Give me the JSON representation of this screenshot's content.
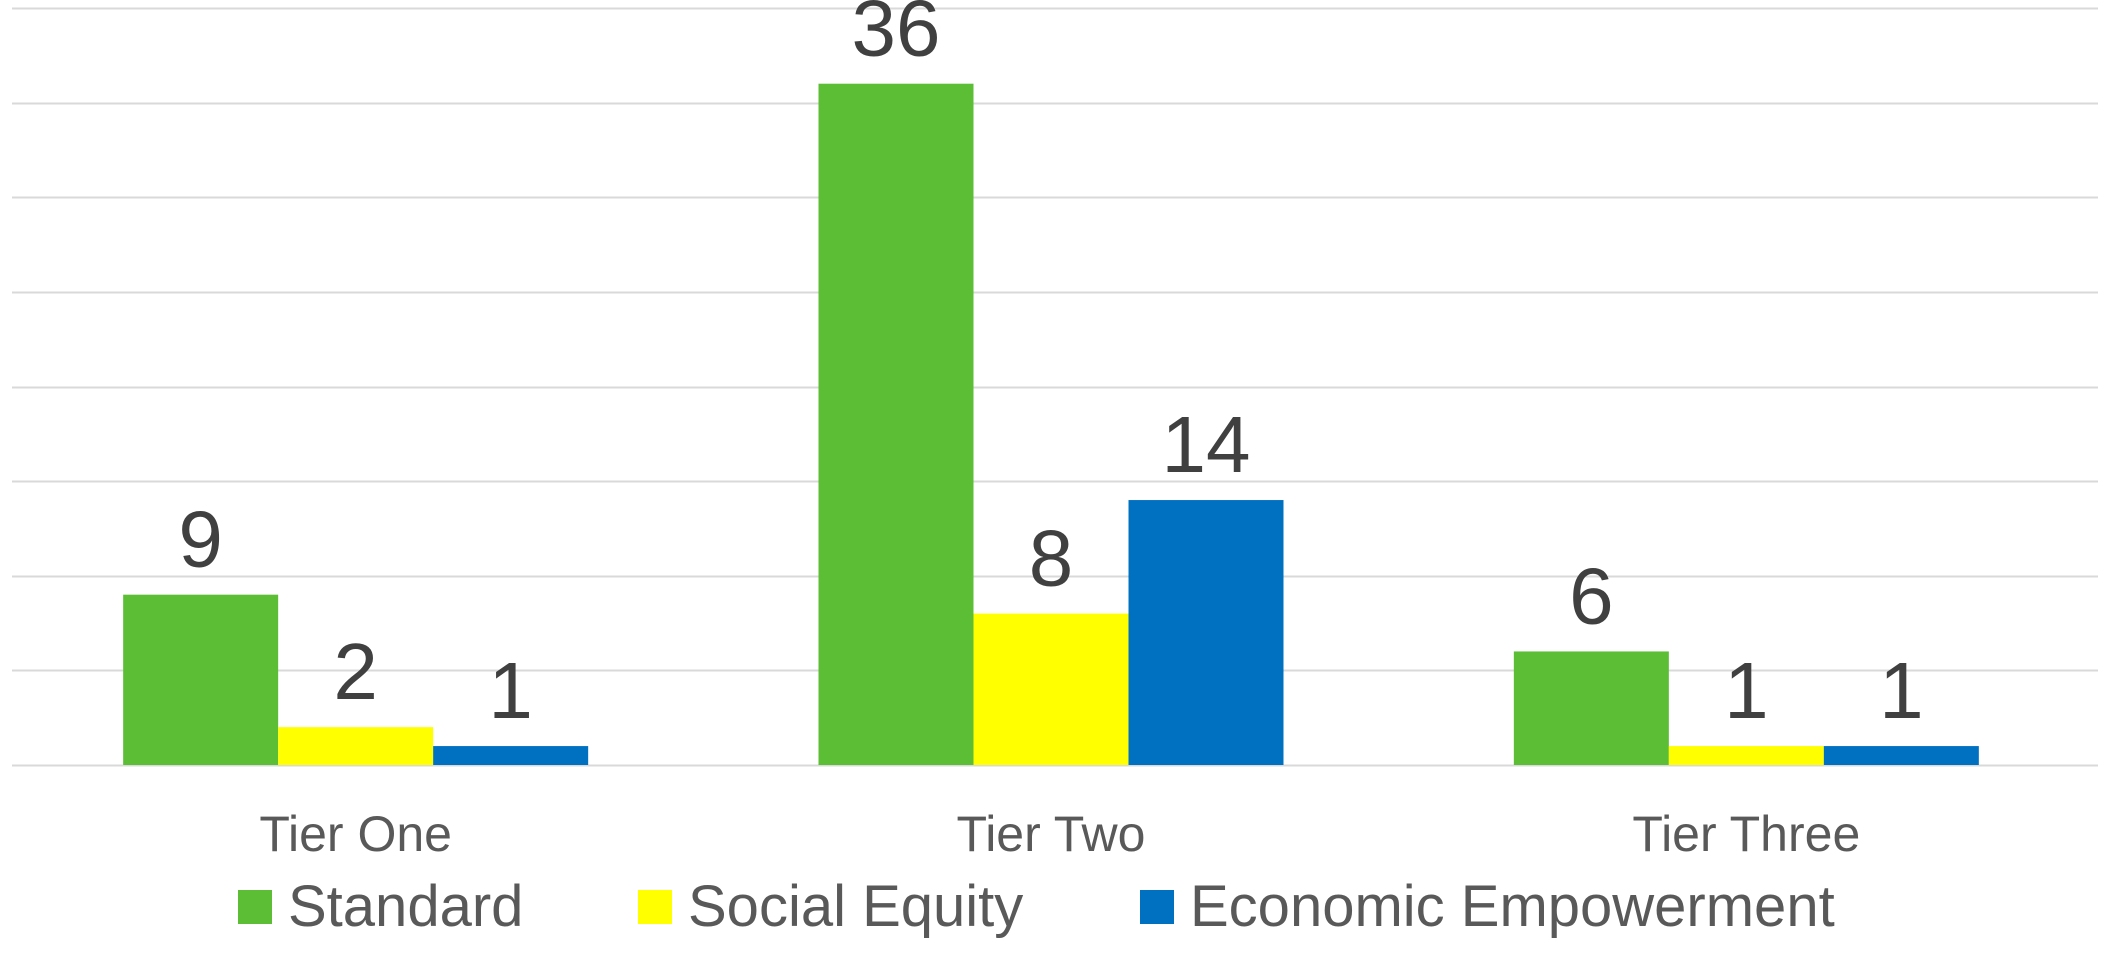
{
  "chart_data": {
    "type": "bar",
    "categories": [
      "Tier One",
      "Tier Two",
      "Tier Three"
    ],
    "series": [
      {
        "name": "Standard",
        "values": [
          9,
          36,
          6
        ],
        "color": "#5BBE34"
      },
      {
        "name": "Social Equity",
        "values": [
          2,
          8,
          1
        ],
        "color": "#FFFF00"
      },
      {
        "name": "Economic Empowerment",
        "values": [
          1,
          14,
          1
        ],
        "color": "#0070C0"
      }
    ],
    "title": "",
    "xlabel": "",
    "ylabel": "",
    "ylim": [
      0,
      40
    ],
    "grid": true,
    "legend_position": "bottom",
    "data_labels": true
  }
}
